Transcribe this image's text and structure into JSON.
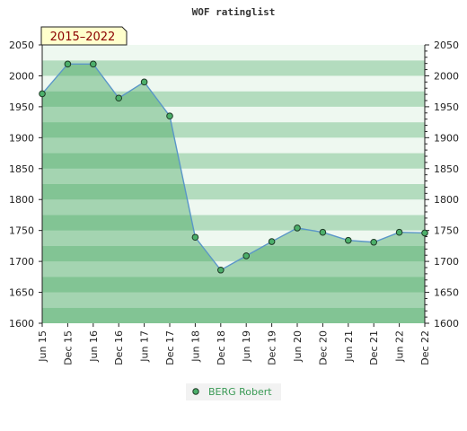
{
  "chart_data": {
    "type": "area",
    "title": "WOF ratinglist",
    "period_badge": "2015–2022",
    "xlabel": "",
    "ylabel": "",
    "categories": [
      "Jun 15",
      "Dec 15",
      "Jun 16",
      "Dec 16",
      "Jun 17",
      "Dec 17",
      "Jun 18",
      "Dec 18",
      "Jun 19",
      "Dec 19",
      "Jun 20",
      "Dec 20",
      "Jun 21",
      "Dec 21",
      "Jun 22",
      "Dec 22"
    ],
    "series": [
      {
        "name": "BERG Robert",
        "values": [
          1971,
          2019,
          2019,
          1964,
          1990,
          1935,
          1739,
          1686,
          1709,
          1732,
          1754,
          1747,
          1734,
          1731,
          1747,
          1746
        ]
      }
    ],
    "ylim": [
      1600,
      2050
    ],
    "yticks": [
      1600,
      1650,
      1700,
      1750,
      1800,
      1850,
      1900,
      1950,
      2000,
      2050
    ],
    "grid": "horizontal bands",
    "legend_position": "bottom-center",
    "colors": {
      "line": "#5a96c8",
      "marker_fill": "#4caf6a",
      "marker_stroke": "#1e3a26",
      "area_fill": "#3fa35a",
      "band_dark": "#b3dcbe",
      "band_light": "#eef8f0",
      "badge_bg": "#ffffcc",
      "badge_text": "#8b0000",
      "legend_text": "#3a9a55",
      "legend_bg": "#f2f2f2"
    }
  }
}
